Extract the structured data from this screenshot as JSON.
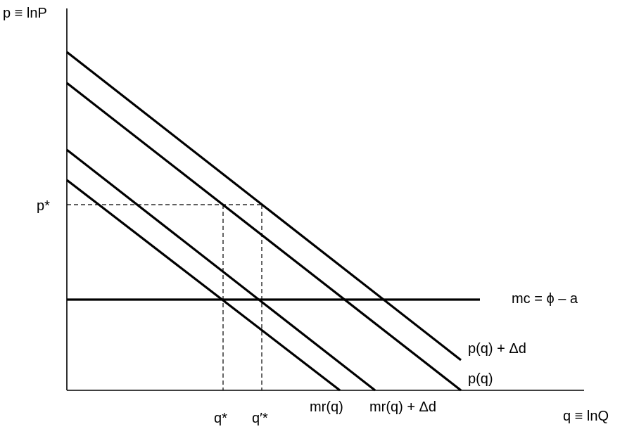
{
  "axes": {
    "y_label": "p ≡ lnP",
    "x_label": "q ≡ lnQ"
  },
  "curves": {
    "demand_shifted": "p(q) + Δd",
    "demand": "p(q)",
    "mr_shifted": "mr(q) + Δd",
    "mr": "mr(q)",
    "mc": "mc = ϕ – a"
  },
  "points": {
    "p_star": "p*",
    "q_star": "q*",
    "q_prime_star": "q′*"
  },
  "colors": {
    "line": "#000000",
    "background": "#ffffff"
  }
}
